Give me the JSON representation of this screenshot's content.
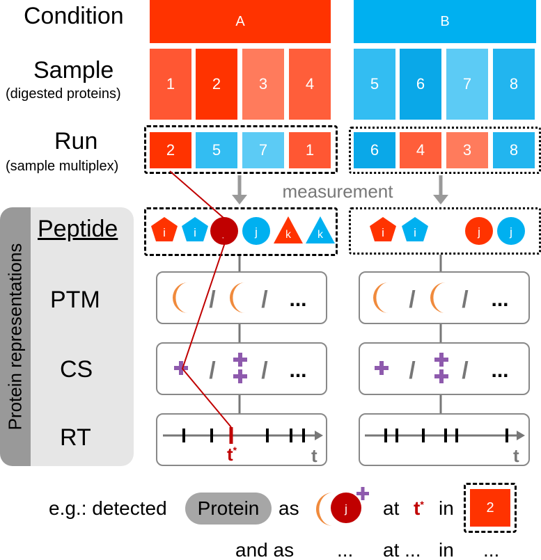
{
  "rows": {
    "condition": "Condition",
    "sample": "Sample",
    "sample_sub": "(digested proteins)",
    "run": "Run",
    "run_sub": "(sample multiplex)",
    "peptide": "Peptide",
    "ptm": "PTM",
    "cs": "CS",
    "rt": "RT",
    "side": "Protein representations"
  },
  "conditions": [
    {
      "label": "A",
      "color": "#ff3300"
    },
    {
      "label": "B",
      "color": "#00b0f0"
    }
  ],
  "samples": [
    {
      "label": "1",
      "color": "#ff5733"
    },
    {
      "label": "2",
      "color": "#ff3300"
    },
    {
      "label": "3",
      "color": "#ff7b5c"
    },
    {
      "label": "4",
      "color": "#ff5e3a"
    },
    {
      "label": "5",
      "color": "#33bdf2"
    },
    {
      "label": "6",
      "color": "#0aa8e8"
    },
    {
      "label": "7",
      "color": "#5ccbf5"
    },
    {
      "label": "8",
      "color": "#22b5ef"
    }
  ],
  "runs": {
    "left": [
      {
        "label": "2",
        "color": "#ff3300"
      },
      {
        "label": "5",
        "color": "#33bdf2"
      },
      {
        "label": "7",
        "color": "#5ccbf5"
      },
      {
        "label": "1",
        "color": "#ff5733"
      }
    ],
    "right": [
      {
        "label": "6",
        "color": "#0aa8e8"
      },
      {
        "label": "4",
        "color": "#ff5e3a"
      },
      {
        "label": "3",
        "color": "#ff7b5c"
      },
      {
        "label": "8",
        "color": "#22b5ef"
      }
    ]
  },
  "measurement": "measurement",
  "peptides": {
    "left": [
      "i",
      "i",
      "j",
      "j",
      "k",
      "k"
    ],
    "right": [
      "i",
      "i",
      "j",
      "j"
    ]
  },
  "ptm": {
    "alpha": "α",
    "beta": "β",
    "sep": "/",
    "more": "..."
  },
  "cs": {
    "sep": "/",
    "more": "..."
  },
  "rt": {
    "t_star": "t",
    "star": "*",
    "t": "t"
  },
  "footer": {
    "eg": "e.g.: detected",
    "protein": "Protein",
    "as": "as",
    "beta": "β",
    "j": "j",
    "at": "at",
    "t": "t",
    "star": "*",
    "in": "in",
    "run": "2",
    "line2_and_as": "and as",
    "line2_dots1": "...",
    "line2_at": "at ...",
    "line2_in": "in",
    "line2_dots2": "..."
  },
  "colors": {
    "red": "#ff3300",
    "blue": "#00b0f0",
    "dark_red": "#c00000",
    "orange": "#f08a3c",
    "purple": "#8e5aad",
    "grey": "#777777",
    "line_red": "#c00000"
  }
}
